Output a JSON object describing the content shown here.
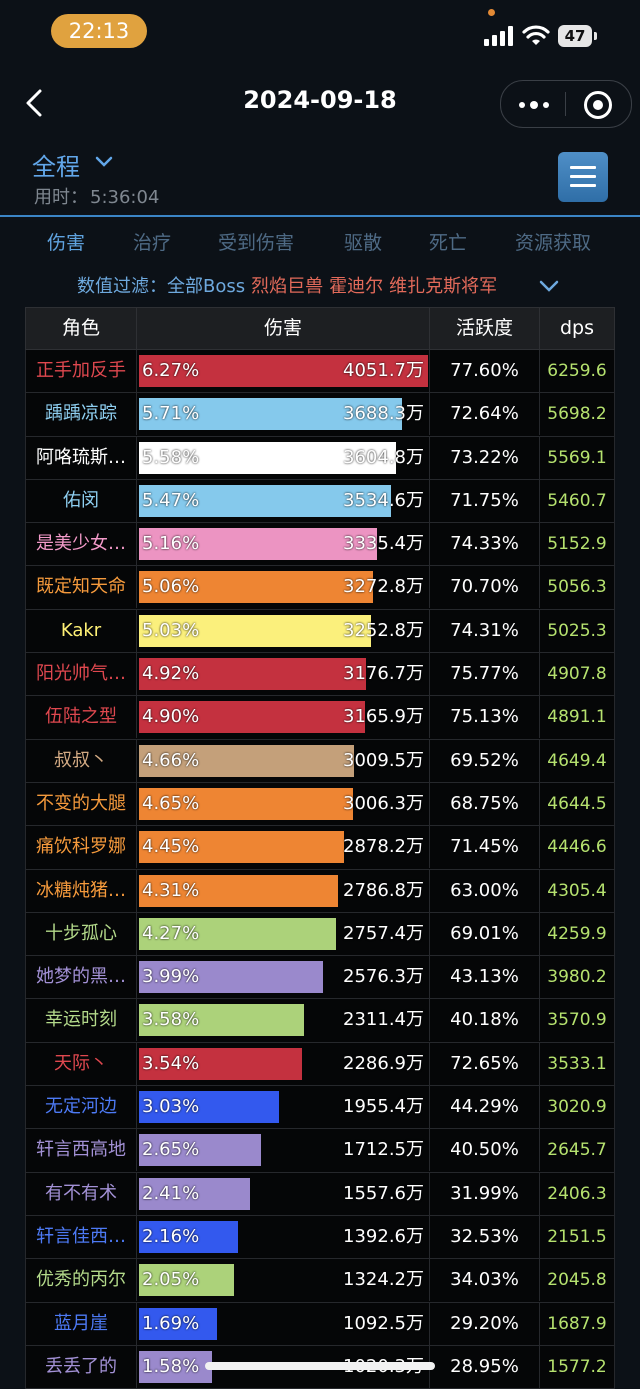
{
  "status_bar": {
    "time": "22:13",
    "battery": "47"
  },
  "nav": {
    "title": "2024-09-18"
  },
  "header": {
    "scope": "全程",
    "elapsed_label": "用时：",
    "elapsed_value": "5:36:04"
  },
  "tabs": [
    "伤害",
    "治疗",
    "受到伤害",
    "驱散",
    "死亡",
    "资源获取"
  ],
  "filter": {
    "label": "数值过滤：",
    "all": "全部Boss",
    "bosses": [
      "烈焰巨兽",
      "霍迪尔",
      "维扎克斯将军"
    ]
  },
  "table": {
    "headers": [
      "角色",
      "伤害",
      "活跃度",
      "dps"
    ],
    "rows": [
      {
        "name": "正手加反手",
        "name_color": "#e0484f",
        "pct": "6.27%",
        "amount": "4051.7万",
        "activity": "77.60%",
        "dps": "6259.6",
        "bar_color": "#c4313f",
        "share": 1.0
      },
      {
        "name": "踽踽凉踪",
        "name_color": "#8fd0f2",
        "pct": "5.71%",
        "amount": "3688.3万",
        "activity": "72.64%",
        "dps": "5698.2",
        "bar_color": "#85c9ec",
        "share": 0.91
      },
      {
        "name": "阿咯琉斯…",
        "name_color": "#ffffff",
        "pct": "5.58%",
        "amount": "3604.8万",
        "activity": "73.22%",
        "dps": "5569.1",
        "bar_color": "#ffffff",
        "share": 0.89
      },
      {
        "name": "佑闵",
        "name_color": "#8fd0f2",
        "pct": "5.47%",
        "amount": "3534.6万",
        "activity": "71.75%",
        "dps": "5460.7",
        "bar_color": "#85c9ec",
        "share": 0.872
      },
      {
        "name": "是美少女…",
        "name_color": "#f39ac9",
        "pct": "5.16%",
        "amount": "3335.4万",
        "activity": "74.33%",
        "dps": "5152.9",
        "bar_color": "#ec94c2",
        "share": 0.823
      },
      {
        "name": "既定知天命",
        "name_color": "#f59a3c",
        "pct": "5.06%",
        "amount": "3272.8万",
        "activity": "70.70%",
        "dps": "5056.3",
        "bar_color": "#ee8533",
        "share": 0.808
      },
      {
        "name": "Kakr",
        "name_color": "#fff176",
        "pct": "5.03%",
        "amount": "3252.8万",
        "activity": "74.31%",
        "dps": "5025.3",
        "bar_color": "#fbf07c",
        "share": 0.803
      },
      {
        "name": "阳光帅气…",
        "name_color": "#e0484f",
        "pct": "4.92%",
        "amount": "3176.7万",
        "activity": "75.77%",
        "dps": "4907.8",
        "bar_color": "#c4313f",
        "share": 0.784
      },
      {
        "name": "伍陆之型",
        "name_color": "#e0484f",
        "pct": "4.90%",
        "amount": "3165.9万",
        "activity": "75.13%",
        "dps": "4891.1",
        "bar_color": "#c4313f",
        "share": 0.781
      },
      {
        "name": "叔叔丶",
        "name_color": "#d4ab84",
        "pct": "4.66%",
        "amount": "3009.5万",
        "activity": "69.52%",
        "dps": "4649.4",
        "bar_color": "#c4a07a",
        "share": 0.743
      },
      {
        "name": "不变的大腿",
        "name_color": "#f59a3c",
        "pct": "4.65%",
        "amount": "3006.3万",
        "activity": "68.75%",
        "dps": "4644.5",
        "bar_color": "#ee8533",
        "share": 0.742
      },
      {
        "name": "痛饮科罗娜",
        "name_color": "#f59a3c",
        "pct": "4.45%",
        "amount": "2878.2万",
        "activity": "71.45%",
        "dps": "4446.6",
        "bar_color": "#ee8533",
        "share": 0.71
      },
      {
        "name": "冰糖炖猪…",
        "name_color": "#f59a3c",
        "pct": "4.31%",
        "amount": "2786.8万",
        "activity": "63.00%",
        "dps": "4305.4",
        "bar_color": "#ee8533",
        "share": 0.688
      },
      {
        "name": "十步孤心",
        "name_color": "#b3d98a",
        "pct": "4.27%",
        "amount": "2757.4万",
        "activity": "69.01%",
        "dps": "4259.9",
        "bar_color": "#acd27a",
        "share": 0.681
      },
      {
        "name": "她梦的黑…",
        "name_color": "#a391d6",
        "pct": "3.99%",
        "amount": "2576.3万",
        "activity": "43.13%",
        "dps": "3980.2",
        "bar_color": "#9a89cc",
        "share": 0.636
      },
      {
        "name": "幸运时刻",
        "name_color": "#b3d98a",
        "pct": "3.58%",
        "amount": "2311.4万",
        "activity": "40.18%",
        "dps": "3570.9",
        "bar_color": "#acd27a",
        "share": 0.571
      },
      {
        "name": "天际丶",
        "name_color": "#e0484f",
        "pct": "3.54%",
        "amount": "2286.9万",
        "activity": "72.65%",
        "dps": "3533.1",
        "bar_color": "#c4313f",
        "share": 0.565
      },
      {
        "name": "无定河边",
        "name_color": "#4d7af5",
        "pct": "3.03%",
        "amount": "1955.4万",
        "activity": "44.29%",
        "dps": "3020.9",
        "bar_color": "#3359ee",
        "share": 0.483
      },
      {
        "name": "轩言西高地",
        "name_color": "#a391d6",
        "pct": "2.65%",
        "amount": "1712.5万",
        "activity": "40.50%",
        "dps": "2645.7",
        "bar_color": "#9a89cc",
        "share": 0.423
      },
      {
        "name": "有不有术",
        "name_color": "#a391d6",
        "pct": "2.41%",
        "amount": "1557.6万",
        "activity": "31.99%",
        "dps": "2406.3",
        "bar_color": "#9a89cc",
        "share": 0.385
      },
      {
        "name": "轩言佳西…",
        "name_color": "#4d7af5",
        "pct": "2.16%",
        "amount": "1392.6万",
        "activity": "32.53%",
        "dps": "2151.5",
        "bar_color": "#3359ee",
        "share": 0.344
      },
      {
        "name": "优秀的丙尔",
        "name_color": "#b3d98a",
        "pct": "2.05%",
        "amount": "1324.2万",
        "activity": "34.03%",
        "dps": "2045.8",
        "bar_color": "#acd27a",
        "share": 0.327
      },
      {
        "name": "蓝月崖",
        "name_color": "#4d7af5",
        "pct": "1.69%",
        "amount": "1092.5万",
        "activity": "29.20%",
        "dps": "1687.9",
        "bar_color": "#3359ee",
        "share": 0.27
      },
      {
        "name": "丢丢了的",
        "name_color": "#a391d6",
        "pct": "1.58%",
        "amount": "1020.3万",
        "activity": "28.95%",
        "dps": "1577.2",
        "bar_color": "#9a89cc",
        "share": 0.252
      }
    ]
  }
}
